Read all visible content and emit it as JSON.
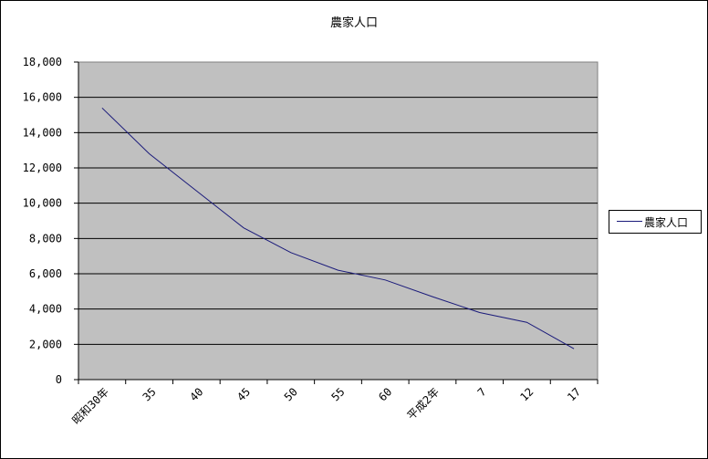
{
  "chart_data": {
    "type": "line",
    "title": "農家人口",
    "xlabel": "",
    "ylabel": "",
    "categories": [
      "昭和30年",
      "35",
      "40",
      "45",
      "50",
      "55",
      "60",
      "平成2年",
      "7",
      "12",
      "17"
    ],
    "series": [
      {
        "name": "農家人口",
        "values": [
          15400,
          12800,
          10700,
          8600,
          7200,
          6200,
          5650,
          4700,
          3800,
          3250,
          1750
        ]
      }
    ],
    "ylim": [
      0,
      18000
    ],
    "yticks": [
      "0",
      "2,000",
      "4,000",
      "6,000",
      "8,000",
      "10,000",
      "12,000",
      "14,000",
      "16,000",
      "18,000"
    ],
    "grid": true,
    "legend": "right",
    "colors": {
      "plot_background": "#c0c0c0",
      "line": "#1a1a7a",
      "gridline": "#000000"
    }
  }
}
